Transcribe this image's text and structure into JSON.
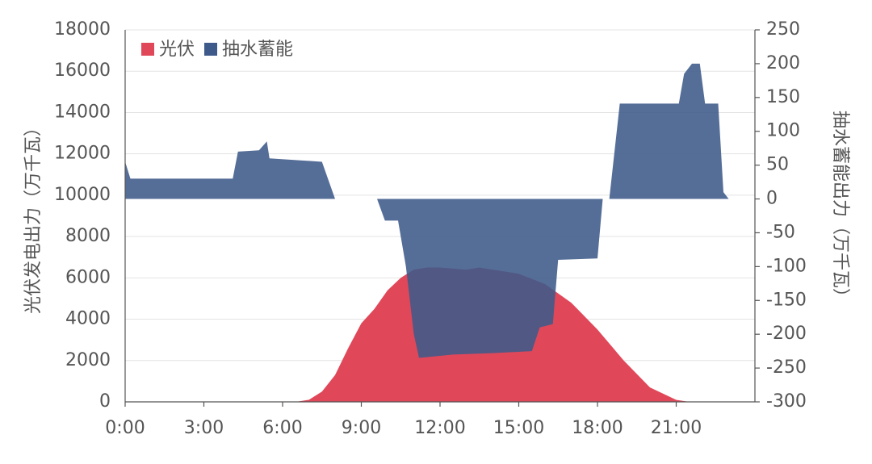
{
  "chart_data": {
    "type": "area",
    "xlim": [
      0,
      24
    ],
    "xticks": [
      {
        "value": 0,
        "label": "0:00"
      },
      {
        "value": 3,
        "label": "3:00"
      },
      {
        "value": 6,
        "label": "6:00"
      },
      {
        "value": 9,
        "label": "9:00"
      },
      {
        "value": 12,
        "label": "12:00"
      },
      {
        "value": 15,
        "label": "15:00"
      },
      {
        "value": 18,
        "label": "18:00"
      },
      {
        "value": 21,
        "label": "21:00"
      }
    ],
    "ylim": [
      0,
      18000
    ],
    "yticks": [
      0,
      2000,
      4000,
      6000,
      8000,
      10000,
      12000,
      14000,
      16000,
      18000
    ],
    "y2lim": [
      -300,
      250
    ],
    "y2ticks": [
      -300,
      -250,
      -200,
      -150,
      -100,
      -50,
      0,
      50,
      100,
      150,
      200,
      250
    ],
    "ylabel": "光伏发电出力（万千瓦）",
    "y2label": "抽水蓄能出力（万千瓦）",
    "grid": true,
    "legend": "upper left",
    "series": [
      {
        "name": "光伏",
        "color": "#e0485a",
        "x": [
          0,
          6.5,
          7,
          7.5,
          8,
          8.5,
          9,
          9.5,
          10,
          10.5,
          11,
          11.5,
          12,
          13,
          13.5,
          14,
          15,
          16,
          17,
          18,
          19,
          20,
          21,
          21.5,
          24
        ],
        "values": [
          0,
          0,
          100,
          500,
          1300,
          2600,
          3800,
          4500,
          5400,
          6000,
          6400,
          6500,
          6500,
          6400,
          6500,
          6400,
          6200,
          5700,
          4800,
          3500,
          2000,
          700,
          100,
          0,
          0
        ]
      },
      {
        "name": "抽水蓄能",
        "color": "#3d5a8a",
        "axis": "y2",
        "x": [
          0,
          0.2,
          4.1,
          4.3,
          5.1,
          5.4,
          5.5,
          7.5,
          8.0,
          8.7,
          9.6,
          9.9,
          10.4,
          10.7,
          11.0,
          11.2,
          12.5,
          14,
          15.5,
          15.8,
          16.3,
          16.5,
          18.0,
          18.2,
          18.45,
          18.85,
          21.1,
          21.3,
          21.6,
          21.9,
          22.1,
          22.6,
          22.8,
          23.0
        ],
        "values": [
          55,
          30,
          30,
          70,
          72,
          85,
          60,
          55,
          0,
          null,
          0,
          -32,
          -32,
          -100,
          -200,
          -235,
          -230,
          -228,
          -225,
          -190,
          -185,
          -90,
          -88,
          0,
          0,
          141,
          141,
          185,
          200,
          200,
          141,
          141,
          10,
          0
        ]
      }
    ]
  }
}
